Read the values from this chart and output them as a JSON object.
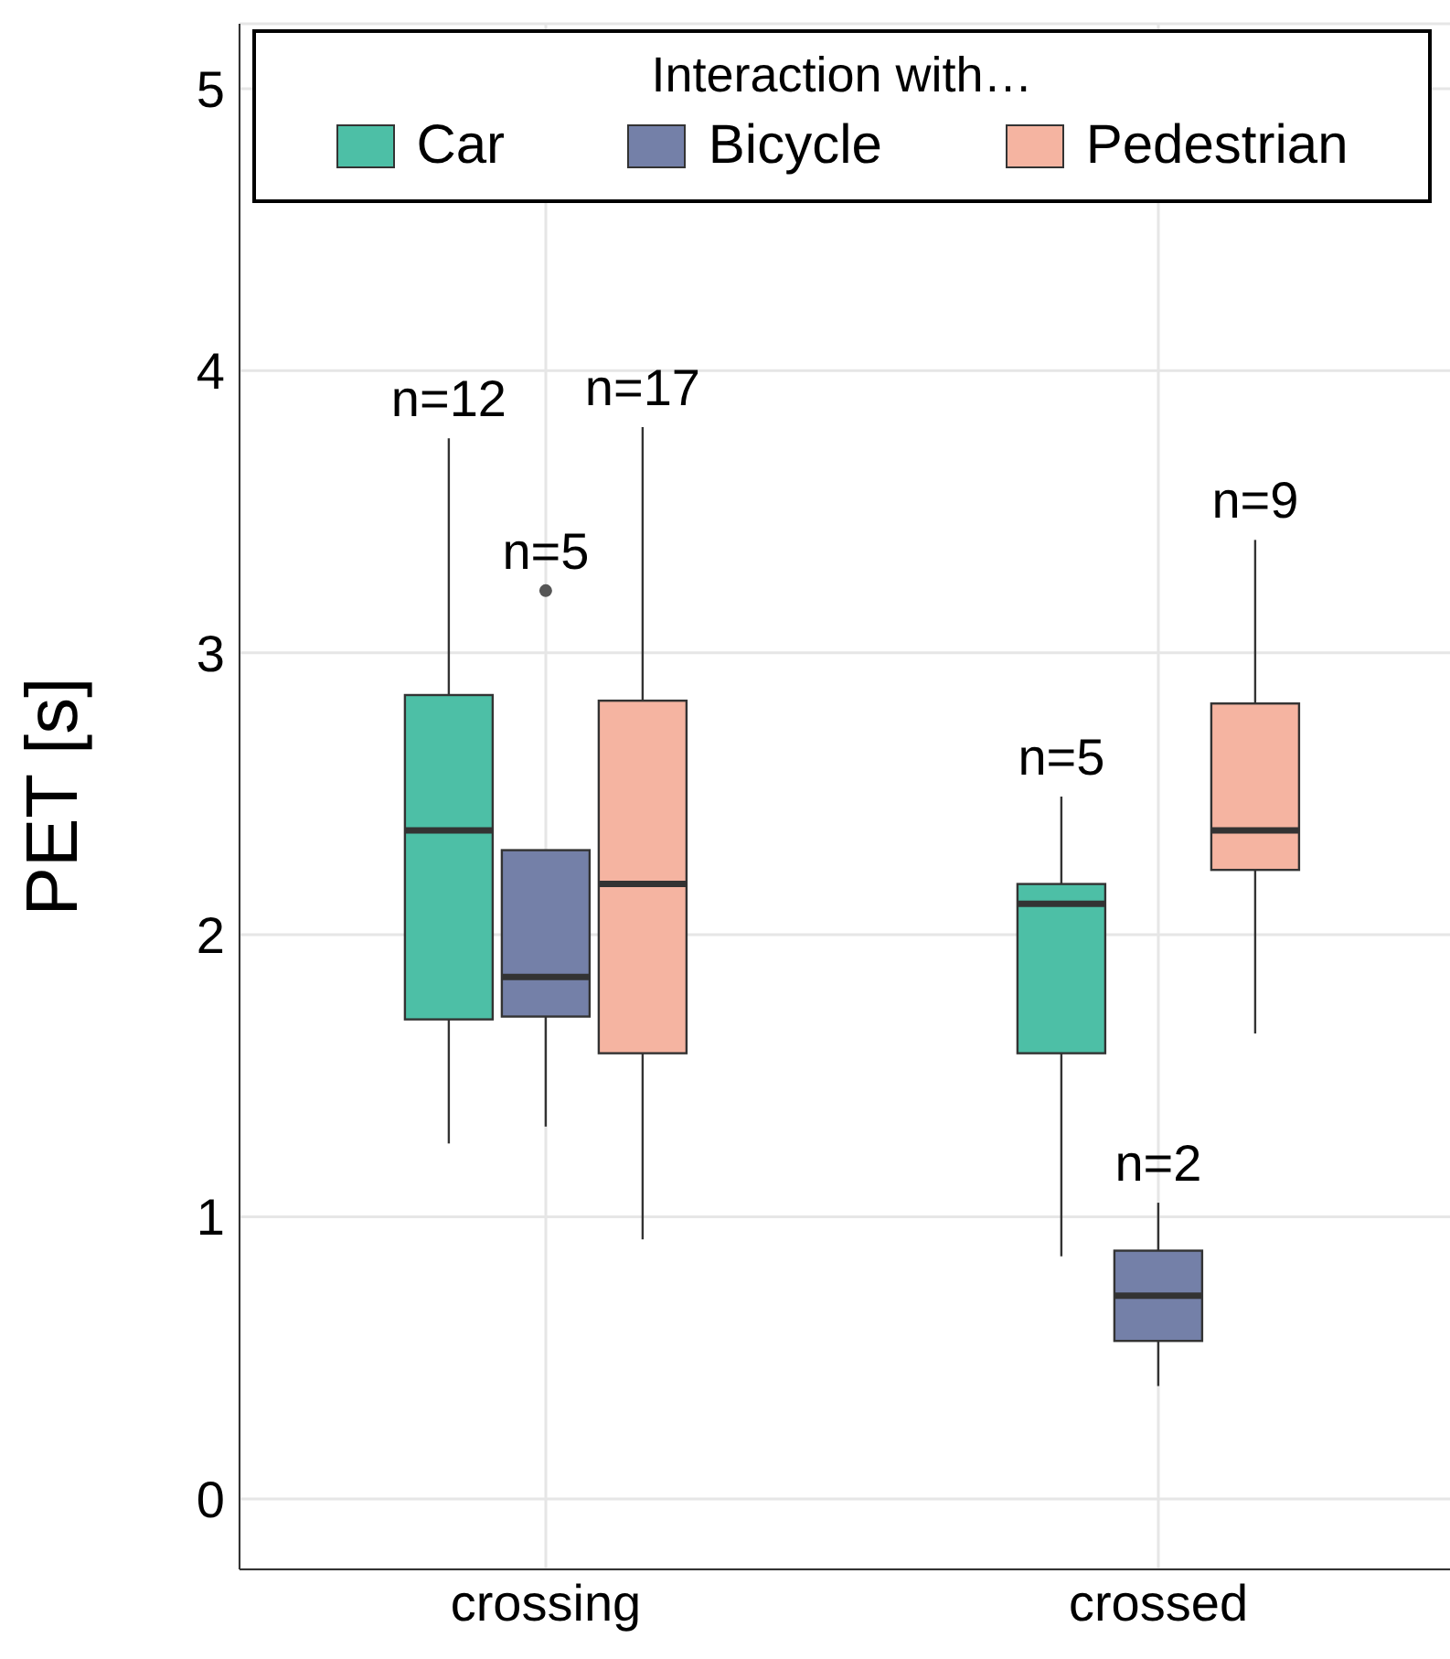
{
  "chart_data": {
    "type": "box",
    "ylabel": "PET [s]",
    "legend_title": "Interaction with…",
    "categories": [
      "crossing",
      "crossed"
    ],
    "series": [
      {
        "name": "Car",
        "color": "#4dbfa6",
        "boxes": [
          {
            "low": 1.26,
            "q1": 1.7,
            "median": 2.37,
            "q3": 2.85,
            "high": 3.76
          },
          {
            "low": 0.86,
            "q1": 1.58,
            "median": 2.11,
            "q3": 2.18,
            "high": 2.49
          }
        ]
      },
      {
        "name": "Bicycle",
        "color": "#7480a8",
        "boxes": [
          {
            "low": 1.32,
            "q1": 1.71,
            "median": 1.85,
            "q3": 2.3,
            "high": 2.3,
            "outliers": [
              3.22
            ]
          },
          {
            "low": 0.4,
            "q1": 0.56,
            "median": 0.72,
            "q3": 0.88,
            "high": 1.05
          }
        ]
      },
      {
        "name": "Pedestrian",
        "color": "#f5b4a1",
        "boxes": [
          {
            "low": 0.92,
            "q1": 1.58,
            "median": 2.18,
            "q3": 2.83,
            "high": 3.8
          },
          {
            "low": 1.65,
            "q1": 2.23,
            "median": 2.37,
            "q3": 2.82,
            "high": 3.4
          }
        ]
      }
    ],
    "annotations": [
      "n=12",
      "n=5",
      "n=17",
      "n=5",
      "n=2",
      "n=9"
    ],
    "ylim": [
      -0.25,
      5.23
    ],
    "yticks": [
      0,
      1,
      2,
      3,
      4,
      5
    ],
    "grid": true,
    "legend": "top"
  }
}
